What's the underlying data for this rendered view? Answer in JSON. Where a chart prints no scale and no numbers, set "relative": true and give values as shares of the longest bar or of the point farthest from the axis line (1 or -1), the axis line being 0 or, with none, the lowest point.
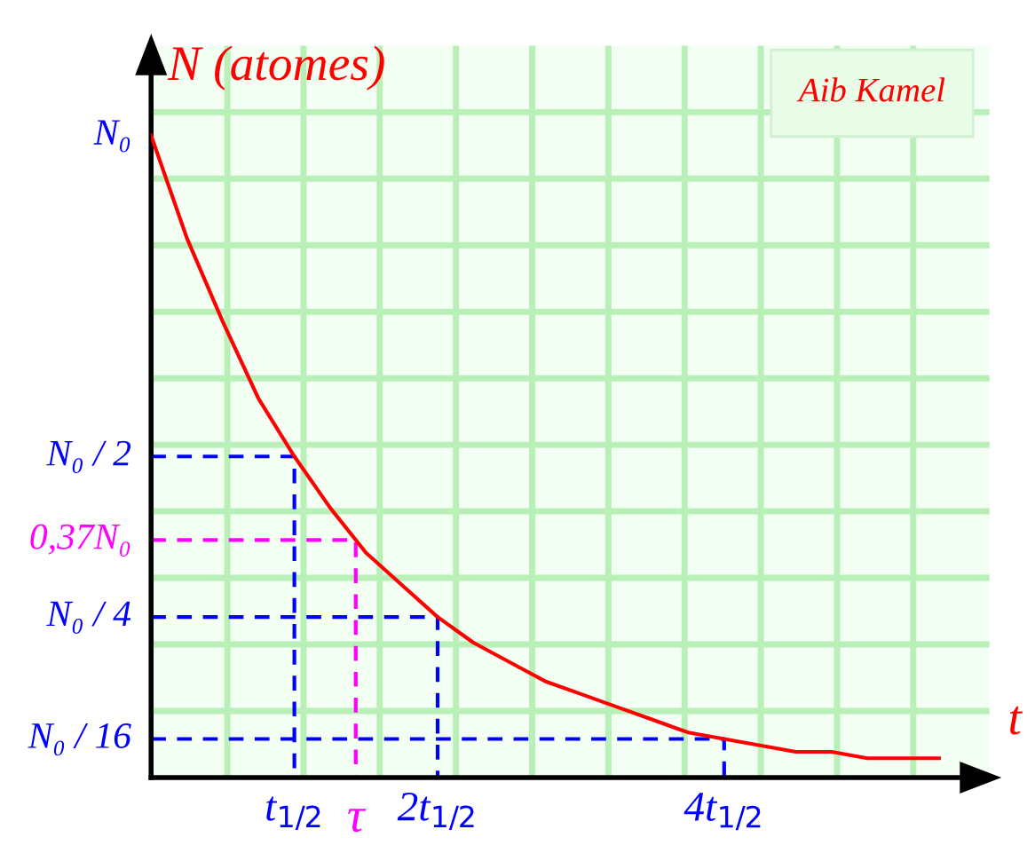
{
  "chart_data": {
    "type": "line",
    "relative": true,
    "ylabel": "N (atomes)",
    "xlabel": "t",
    "annotations": [
      "Aib Kamel",
      "τ",
      "N₀"
    ],
    "grid": true,
    "categories": [
      null,
      null,
      null,
      null,
      "t$_{1/2}$",
      null,
      null,
      null,
      "2t$_{1/2}$",
      null,
      null,
      null,
      null,
      null,
      null,
      null,
      "4t$_{1/2}$",
      null,
      null,
      null,
      null,
      null,
      null
    ],
    "ref_lines": [
      {
        "axis": "y",
        "value": 0.5,
        "label": "N₀ / 2",
        "color": "#0000ff",
        "line_style": "dashed"
      },
      {
        "axis": "y",
        "value": 0.37,
        "label": "0,37N₀",
        "color": "#ff00ff",
        "line_style": "dashed"
      },
      {
        "axis": "y",
        "value": 0.25,
        "label": "N₀ / 4",
        "color": "#0000ff",
        "line_style": "dashed"
      },
      {
        "axis": "y",
        "value": 0.06,
        "label": "N₀ / 16",
        "color": "#0000ff",
        "line_style": "dashed"
      }
    ],
    "series": [
      {
        "color": "#ff0000",
        "values": [
          1,
          0.84,
          0.71,
          0.59,
          0.5,
          0.42,
          0.35,
          0.3,
          0.25,
          0.21,
          0.18,
          0.15,
          0.13,
          0.11,
          0.09,
          0.07,
          0.06,
          0.05,
          0.04,
          0.04,
          0.03,
          0.03,
          0.03
        ]
      }
    ]
  }
}
